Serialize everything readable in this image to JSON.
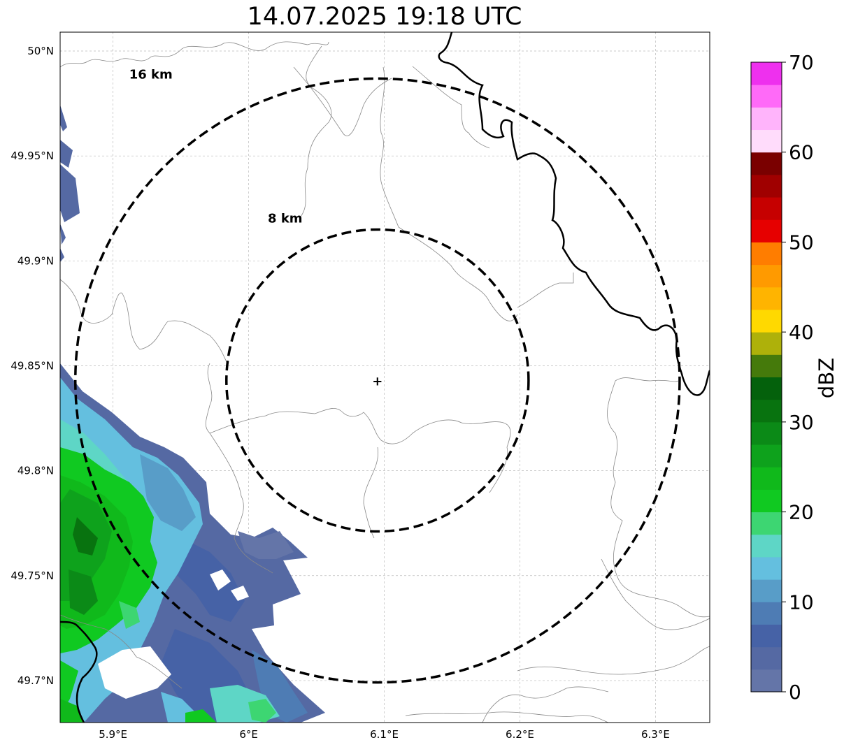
{
  "title": "14.07.2025 19:18 UTC",
  "map": {
    "lon_ticks": [
      {
        "value": 5.9,
        "label": "5.9°E"
      },
      {
        "value": 6.0,
        "label": "6°E"
      },
      {
        "value": 6.1,
        "label": "6.1°E"
      },
      {
        "value": 6.2,
        "label": "6.2°E"
      },
      {
        "value": 6.3,
        "label": "6.3°E"
      }
    ],
    "lat_ticks": [
      {
        "value": 50.0,
        "label": "50°N"
      },
      {
        "value": 49.95,
        "label": "49.95°N"
      },
      {
        "value": 49.9,
        "label": "49.9°N"
      },
      {
        "value": 49.85,
        "label": "49.85°N"
      },
      {
        "value": 49.8,
        "label": "49.8°N"
      },
      {
        "value": 49.75,
        "label": "49.75°N"
      },
      {
        "value": 49.7,
        "label": "49.7°N"
      }
    ],
    "lon_range": [
      5.861,
      6.34
    ],
    "lat_range": [
      49.68,
      50.009
    ],
    "grid": true,
    "radar_site": {
      "lon": 6.095,
      "lat": 49.843
    },
    "range_rings": [
      {
        "label": "8 km",
        "radius_km": 8
      },
      {
        "label": "16 km",
        "radius_km": 16
      }
    ]
  },
  "colorbar": {
    "label": "dBZ",
    "min": 0,
    "max": 70,
    "ticks": [
      "0",
      "10",
      "20",
      "30",
      "40",
      "50",
      "60",
      "70"
    ],
    "colors": [
      "#6475a8",
      "#5569a3",
      "#4662a6",
      "#4e7cb4",
      "#589dc8",
      "#64bfdf",
      "#5ed6c6",
      "#3dd672",
      "#10c921",
      "#10b91b",
      "#0ea21c",
      "#0b8a17",
      "#08730f",
      "#04610c",
      "#457a0b",
      "#aeb10a",
      "#ffd900",
      "#ffb400",
      "#ff9a00",
      "#ff7d00",
      "#e60000",
      "#c60000",
      "#a00000",
      "#7a0000",
      "#ffdcfb",
      "#ffb4fb",
      "#ff6af8",
      "#ee30ee"
    ]
  }
}
